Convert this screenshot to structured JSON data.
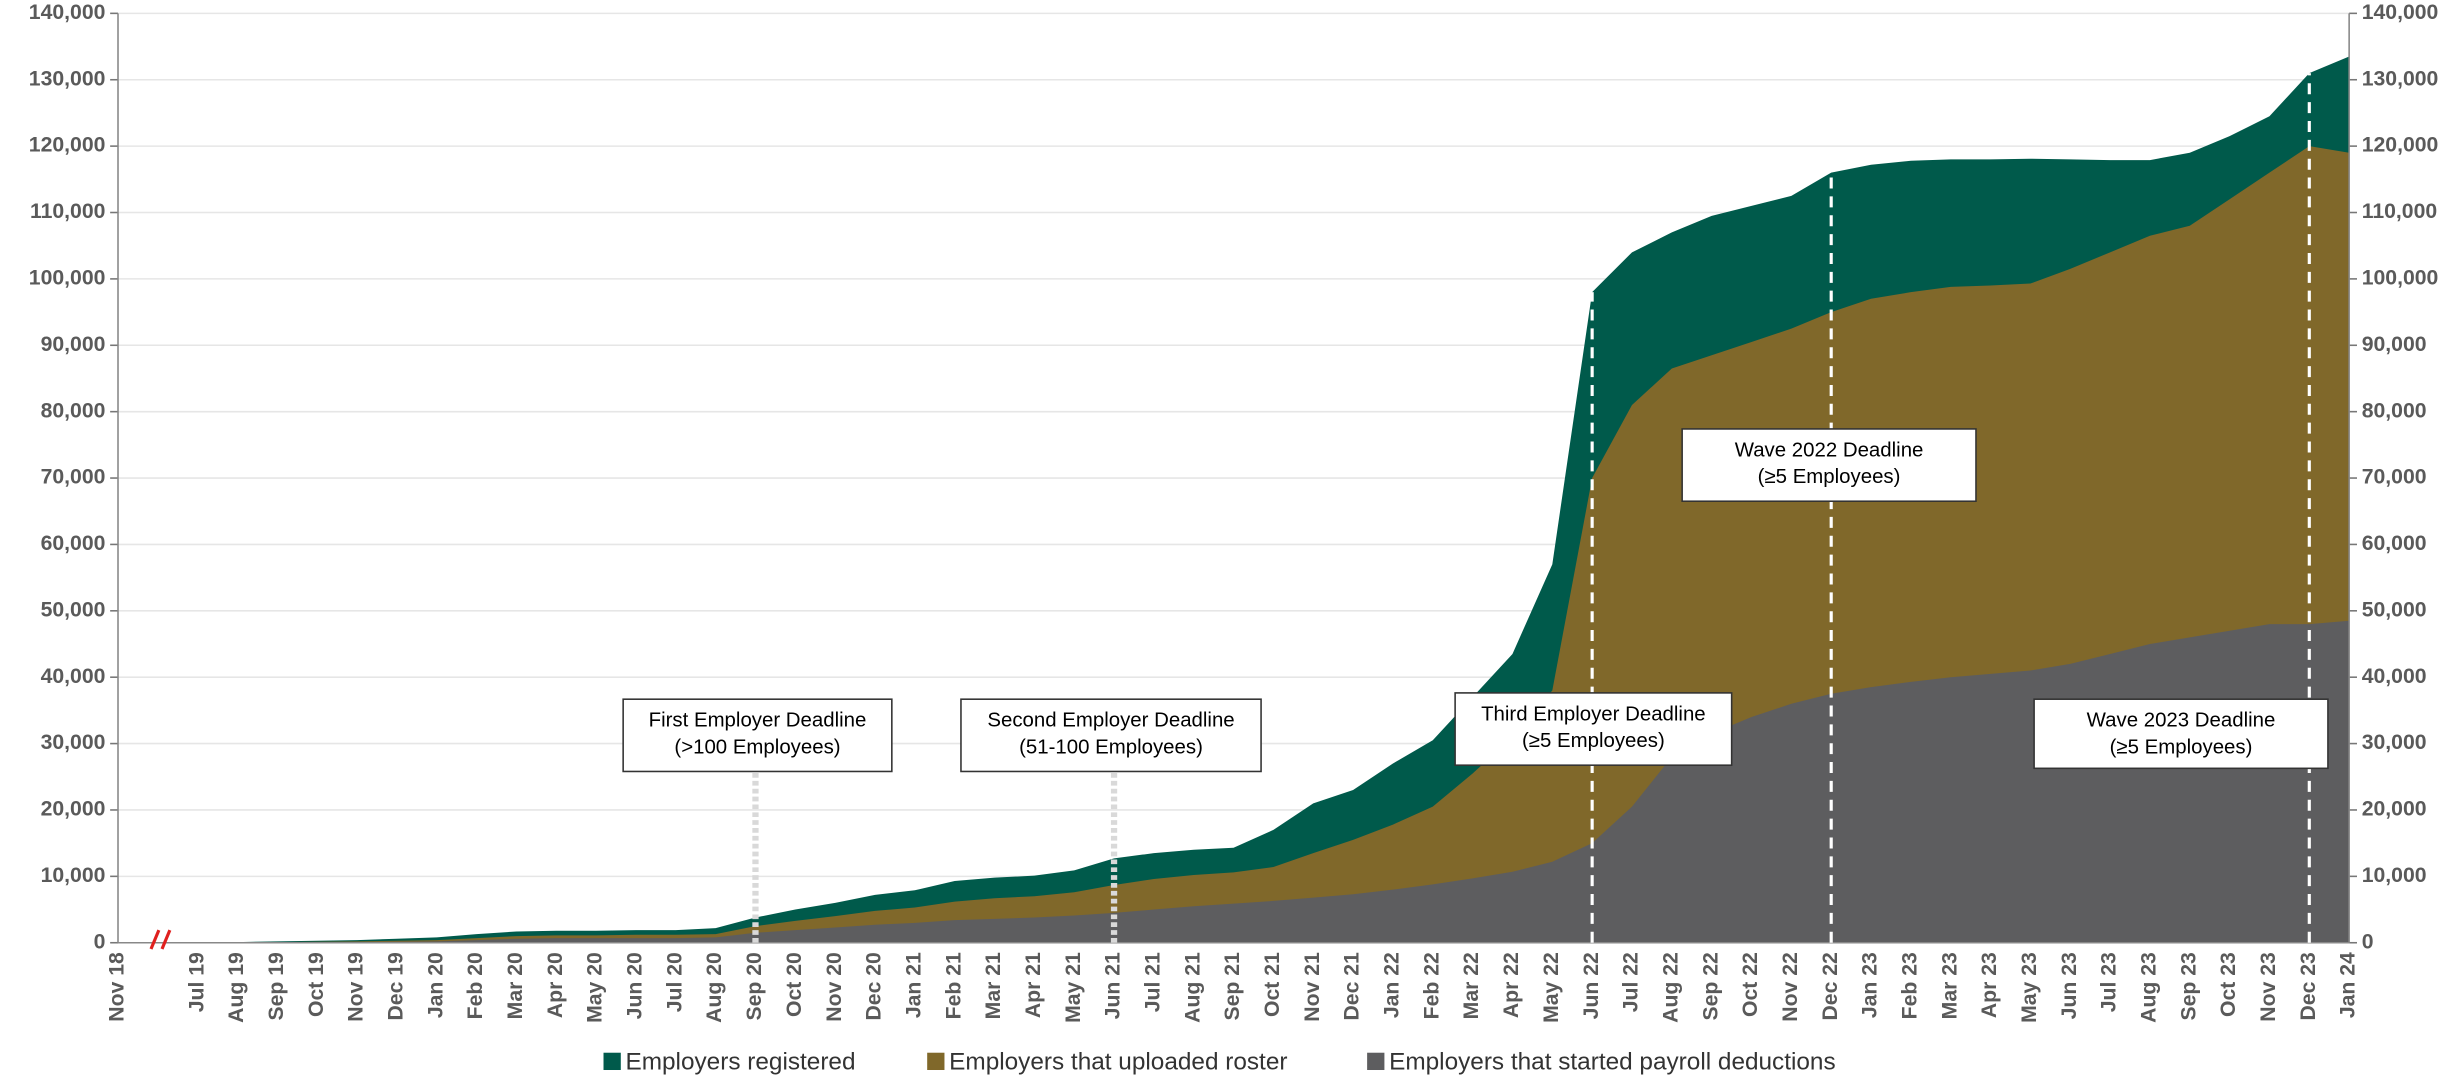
{
  "chart_data": {
    "type": "area",
    "categories": [
      "Nov 18",
      null,
      "Jul 19",
      "Aug 19",
      "Sep 19",
      "Oct 19",
      "Nov 19",
      "Dec 19",
      "Jan 20",
      "Feb 20",
      "Mar 20",
      "Apr 20",
      "May 20",
      "Jun 20",
      "Jul 20",
      "Aug 20",
      "Sep 20",
      "Oct 20",
      "Nov 20",
      "Dec 20",
      "Jan 21",
      "Feb 21",
      "Mar 21",
      "Apr 21",
      "May 21",
      "Jun 21",
      "Jul 21",
      "Aug 21",
      "Sep 21",
      "Oct 21",
      "Nov 21",
      "Dec 21",
      "Jan 22",
      "Feb 22",
      "Mar 22",
      "Apr 22",
      "May 22",
      "Jun 22",
      "Jul 22",
      "Aug 22",
      "Sep 22",
      "Oct 22",
      "Nov 22",
      "Dec 22",
      "Jan 23",
      "Feb 23",
      "Mar 23",
      "Apr 23",
      "May 23",
      "Jun 23",
      "Jul 23",
      "Aug 23",
      "Sep 23",
      "Oct 23",
      "Nov 23",
      "Dec 23",
      "Jan 24"
    ],
    "series": [
      {
        "name": "Employers registered",
        "color": "#005a4b",
        "values": [
          0,
          0,
          0,
          100,
          200,
          300,
          400,
          600,
          800,
          1300,
          1700,
          1800,
          1800,
          1900,
          1900,
          2200,
          3800,
          5000,
          6000,
          7200,
          7900,
          9300,
          9800,
          10100,
          10900,
          12700,
          13500,
          14000,
          14300,
          17000,
          21000,
          23000,
          27000,
          30500,
          37000,
          43500,
          57000,
          98000,
          104000,
          107000,
          109500,
          111000,
          112500,
          116000,
          117200,
          117800,
          118000,
          118000,
          118100,
          118000,
          117900,
          117900,
          119000,
          121500,
          124500,
          131000,
          133500
        ]
      },
      {
        "name": "Employers that uploaded roster",
        "color": "#80682a",
        "values": [
          0,
          0,
          0,
          50,
          100,
          150,
          200,
          300,
          400,
          700,
          1000,
          1100,
          1100,
          1200,
          1200,
          1300,
          2500,
          3300,
          4000,
          4800,
          5300,
          6200,
          6700,
          7000,
          7600,
          8700,
          9600,
          10200,
          10600,
          11400,
          13500,
          15500,
          17800,
          20500,
          25500,
          31000,
          38000,
          70000,
          81000,
          86500,
          88500,
          90500,
          92500,
          95000,
          97000,
          98000,
          98800,
          99000,
          99300,
          101500,
          104000,
          106500,
          108000,
          112000,
          116000,
          120000,
          119000
        ]
      },
      {
        "name": "Employers that started payroll deductions",
        "color": "#5d5d5f",
        "values": [
          0,
          0,
          0,
          20,
          50,
          80,
          100,
          150,
          200,
          400,
          600,
          700,
          700,
          700,
          700,
          800,
          1500,
          1900,
          2300,
          2700,
          3000,
          3400,
          3600,
          3800,
          4100,
          4500,
          5000,
          5500,
          5900,
          6300,
          6800,
          7300,
          8000,
          8800,
          9700,
          10700,
          12200,
          15000,
          20500,
          28000,
          31500,
          34000,
          36000,
          37500,
          38500,
          39300,
          40000,
          40500,
          41000,
          42000,
          43500,
          45000,
          46000,
          47000,
          48000,
          48000,
          48500
        ]
      }
    ],
    "ylim": [
      0,
      140000
    ],
    "yticks": [
      0,
      {
        "value": 10000,
        "label": "10,000"
      },
      {
        "value": 20000,
        "label": "20,000"
      },
      {
        "value": 30000,
        "label": "30,000"
      },
      {
        "value": 40000,
        "label": "40,000"
      },
      {
        "value": 50000,
        "label": "50,000"
      },
      {
        "value": 60000,
        "label": "60,000"
      },
      {
        "value": 70000,
        "label": "70,000"
      },
      {
        "value": 80000,
        "label": "80,000"
      },
      {
        "value": 90000,
        "label": "90,000"
      },
      {
        "value": 100000,
        "label": "100,000"
      },
      {
        "value": 110000,
        "label": "110,000"
      },
      {
        "value": 120000,
        "label": "120,000"
      },
      {
        "value": 130000,
        "label": "130,000"
      },
      {
        "value": 140000,
        "label": "140,000"
      }
    ],
    "y2lim": [
      0,
      140000
    ],
    "y2ticks": [
      0,
      {
        "value": 10000,
        "label": "10,000"
      },
      {
        "value": 20000,
        "label": "20,000"
      },
      {
        "value": 30000,
        "label": "30,000"
      },
      {
        "value": 40000,
        "label": "40,000"
      },
      {
        "value": 50000,
        "label": "50,000"
      },
      {
        "value": 60000,
        "label": "60,000"
      },
      {
        "value": 70000,
        "label": "70,000"
      },
      {
        "value": 80000,
        "label": "80,000"
      },
      {
        "value": 90000,
        "label": "90,000"
      },
      {
        "value": 100000,
        "label": "100,000"
      },
      {
        "value": 110000,
        "label": "110,000"
      },
      {
        "value": 120000,
        "label": "120,000"
      },
      {
        "value": 130000,
        "label": "130,000"
      },
      {
        "value": 140000,
        "label": "140,000"
      }
    ],
    "grid": true,
    "legend": "bottom",
    "annotations": [
      {
        "label": [
          "First Employer Deadline",
          "(>100 Employees)"
        ],
        "x": "Sep 20"
      },
      {
        "label": [
          "Second Employer Deadline",
          "(51-100 Employees)"
        ],
        "x": "Jun 21"
      },
      {
        "label": [
          "Third Employer Deadline",
          "(≥5 Employees)"
        ],
        "x": "Jun 22"
      },
      {
        "label": [
          "Wave 2022 Deadline",
          "(≥5 Employees)"
        ],
        "x": "Dec 22"
      },
      {
        "label": [
          "Wave 2023 Deadline",
          "(≥5 Employees)"
        ],
        "x": "Dec 23"
      }
    ]
  }
}
